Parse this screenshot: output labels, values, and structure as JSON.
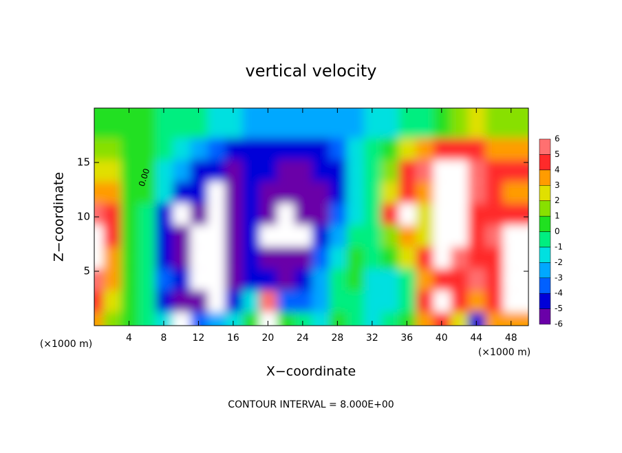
{
  "chart_data": {
    "type": "heatmap",
    "title": "vertical velocity",
    "xlabel": "X−coordinate",
    "ylabel": "Z−coordinate",
    "x_unit_label": "(×1000 m)",
    "footer": "CONTOUR INTERVAL = 8.000E+00",
    "contour_label": "0.00",
    "xlim": [
      0,
      50
    ],
    "ylim": [
      0,
      20
    ],
    "xticks": [
      4,
      8,
      12,
      16,
      20,
      24,
      28,
      32,
      36,
      40,
      44,
      48
    ],
    "yticks": [
      5,
      10,
      15
    ],
    "x": [
      1,
      3,
      5,
      7,
      9,
      11,
      13,
      15,
      17,
      19,
      21,
      23,
      25,
      27,
      29,
      31,
      33,
      35,
      37,
      39,
      41,
      43,
      45,
      47,
      49
    ],
    "z": [
      1,
      3,
      5,
      7,
      9,
      11,
      13,
      15,
      17,
      19
    ],
    "values": [
      [
        4,
        2,
        1,
        0,
        -1,
        -6.5,
        -3,
        -2,
        -1,
        1,
        7,
        1,
        0,
        -1,
        1,
        0,
        -1,
        0,
        1,
        4,
        5,
        3,
        -4,
        4,
        4
      ],
      [
        5,
        3,
        1,
        0,
        -4,
        -5,
        -5,
        -6.5,
        -4,
        -1,
        6,
        -3,
        -3,
        -2,
        0,
        -0.5,
        -1,
        -1,
        0,
        5,
        7,
        5,
        4,
        5,
        7
      ],
      [
        6,
        4,
        1,
        0,
        -3,
        -4,
        -7,
        -7,
        -5,
        -4,
        -4,
        -5,
        -4,
        -2,
        0,
        1,
        -1,
        -1,
        0,
        4,
        5,
        5,
        6,
        5,
        7
      ],
      [
        6.5,
        4,
        1,
        0,
        -4,
        -5,
        -7,
        -7,
        -5,
        -4.5,
        -5,
        -6,
        -5,
        -3,
        -1,
        1,
        0,
        1,
        3,
        5,
        7,
        6,
        5,
        5,
        7
      ],
      [
        7,
        4.5,
        1,
        0,
        -4,
        -5,
        -6.5,
        -7,
        -6,
        -4.5,
        -6.5,
        -7,
        -6.5,
        -4,
        -2,
        0,
        0,
        2,
        4,
        3,
        7,
        6.5,
        5,
        6,
        6.5
      ],
      [
        6,
        4.5,
        1,
        0,
        -4,
        -6.5,
        -5,
        -7,
        -5.5,
        -4.5,
        -5.5,
        -7,
        -6,
        -5,
        -3,
        -1,
        0,
        5,
        6.5,
        3,
        7,
        7,
        5,
        5,
        5
      ],
      [
        4,
        4,
        1,
        0.5,
        -1,
        -4,
        -4.5,
        -6.5,
        -5,
        -4.5,
        -6,
        -6,
        -5.5,
        -5,
        -4,
        -1,
        0,
        3,
        5,
        4,
        6.5,
        7,
        6,
        5,
        4
      ],
      [
        3,
        3,
        1,
        0.5,
        -1,
        -2,
        -4,
        -4.5,
        -5,
        -4.5,
        -4.5,
        -5,
        -5,
        -4.5,
        -4,
        -1,
        0,
        2,
        4.5,
        5.5,
        6.5,
        6.5,
        6,
        5,
        4.5
      ],
      [
        2,
        1.5,
        1,
        0.5,
        0,
        -1,
        -2.5,
        -3.5,
        -4,
        -4,
        -4,
        -4,
        -4,
        -4,
        -3.5,
        -1,
        0,
        1,
        3,
        4,
        4.5,
        4.5,
        4.5,
        4,
        4
      ],
      [
        1,
        1,
        1,
        0.5,
        0,
        0,
        0,
        -1,
        -1.5,
        -2,
        -2,
        -2,
        -2,
        -2,
        -2,
        -2,
        -1.5,
        -1,
        0,
        0,
        1,
        2,
        2.5,
        2,
        1.5
      ]
    ],
    "levels": [
      -6,
      -5,
      -4,
      -3,
      -2,
      -1,
      0,
      1,
      2,
      3,
      4,
      5,
      6
    ],
    "colors": [
      "#6a00a8",
      "#0000d8",
      "#0060ff",
      "#00a8ff",
      "#00e0e0",
      "#00ee80",
      "#20e020",
      "#88e000",
      "#e0e000",
      "#ff9c00",
      "#ff2a2a",
      "#ff7070"
    ],
    "out_of_range_color": "#ffffff"
  }
}
